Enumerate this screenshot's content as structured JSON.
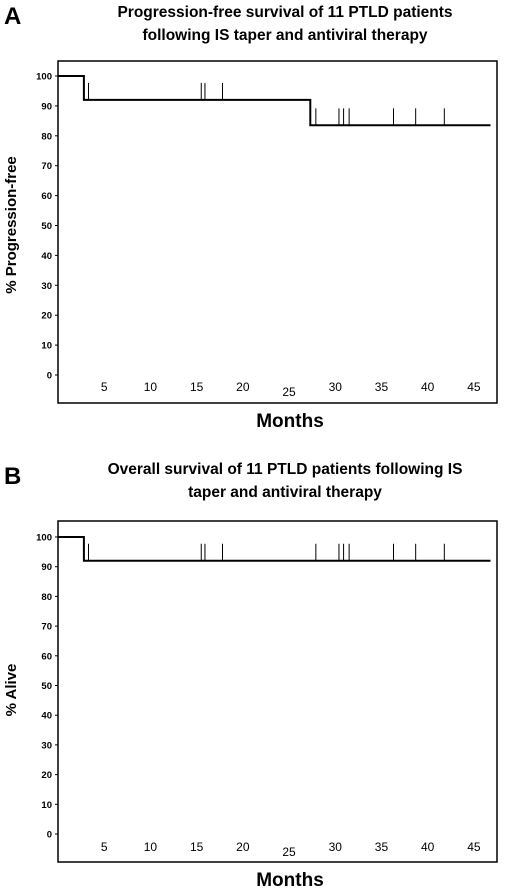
{
  "chart_data": [
    {
      "panel": "A",
      "type": "line",
      "title_lines": [
        "Progression-free survival of 11 PTLD patients",
        "following IS taper and antiviral therapy"
      ],
      "xlabel": "Months",
      "ylabel": "% Progression-free",
      "xlim": [
        0,
        47.5
      ],
      "ylim": [
        0,
        100
      ],
      "xticks": [
        5,
        10,
        15,
        20,
        25,
        30,
        35,
        40,
        45
      ],
      "yticks": [
        0,
        10,
        20,
        30,
        40,
        50,
        60,
        70,
        80,
        90,
        100
      ],
      "step_curve": [
        {
          "x": 0,
          "y": 100
        },
        {
          "x": 2.8,
          "y": 100
        },
        {
          "x": 2.8,
          "y": 92
        },
        {
          "x": 27.3,
          "y": 92
        },
        {
          "x": 27.3,
          "y": 83.5
        },
        {
          "x": 46.8,
          "y": 83.5
        }
      ],
      "censored": [
        3.3,
        15.5,
        15.9,
        17.8,
        27.9,
        30.4,
        30.9,
        31.5,
        36.3,
        38.7,
        41.8
      ]
    },
    {
      "panel": "B",
      "type": "line",
      "title_lines": [
        "Overall survival of 11 PTLD patients following IS",
        "taper and antiviral therapy"
      ],
      "xlabel": "Months",
      "ylabel": "% Alive",
      "xlim": [
        0,
        47.5
      ],
      "ylim": [
        0,
        100
      ],
      "xticks": [
        5,
        10,
        15,
        20,
        25,
        30,
        35,
        40,
        45
      ],
      "yticks": [
        0,
        10,
        20,
        30,
        40,
        50,
        60,
        70,
        80,
        90,
        100
      ],
      "step_curve": [
        {
          "x": 0,
          "y": 100
        },
        {
          "x": 2.8,
          "y": 100
        },
        {
          "x": 2.8,
          "y": 92
        },
        {
          "x": 46.8,
          "y": 92
        }
      ],
      "censored": [
        3.3,
        15.5,
        15.9,
        17.8,
        27.9,
        30.4,
        30.9,
        31.5,
        36.3,
        38.7,
        41.8
      ]
    }
  ]
}
